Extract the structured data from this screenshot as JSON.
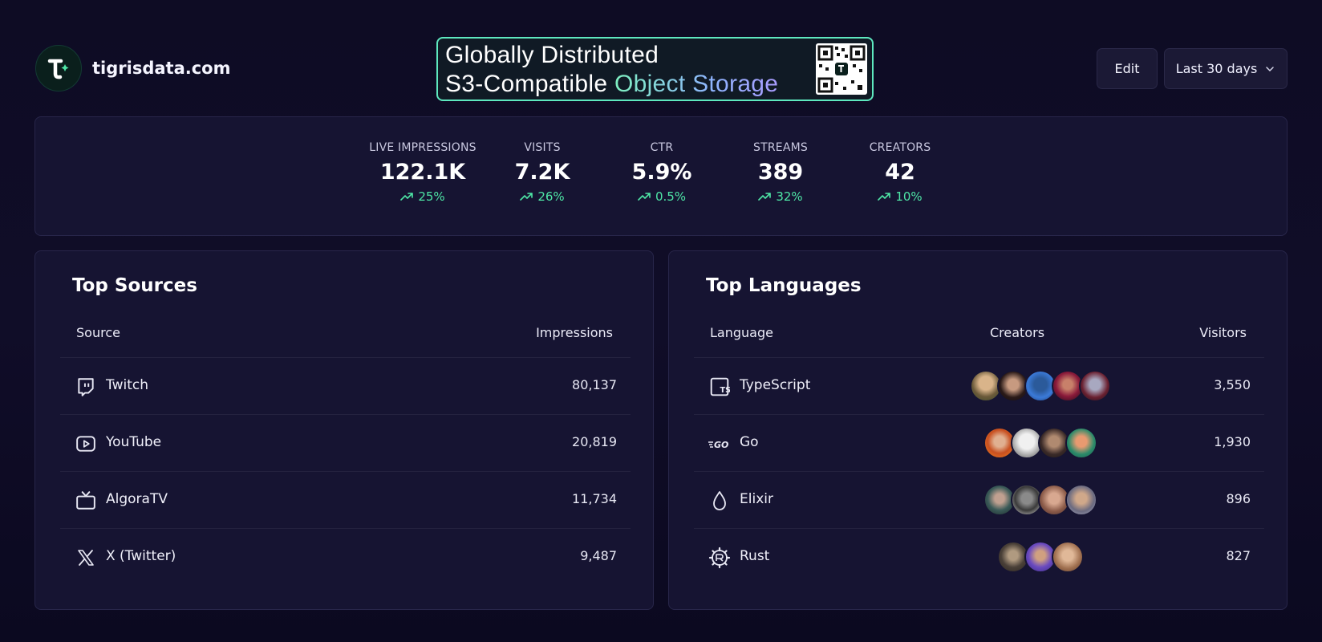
{
  "brand": {
    "name": "tigrisdata.com"
  },
  "banner": {
    "line1": "Globally Distributed",
    "line2_prefix": "S3-Compatible ",
    "line2_accent": "Object Storage"
  },
  "toolbar": {
    "edit_label": "Edit",
    "range_label": "Last 30 days"
  },
  "stats": [
    {
      "label": "LIVE IMPRESSIONS",
      "value": "122.1K",
      "delta": "25%"
    },
    {
      "label": "VISITS",
      "value": "7.2K",
      "delta": "26%"
    },
    {
      "label": "CTR",
      "value": "5.9%",
      "delta": "0.5%"
    },
    {
      "label": "STREAMS",
      "value": "389",
      "delta": "32%"
    },
    {
      "label": "CREATORS",
      "value": "42",
      "delta": "10%"
    }
  ],
  "top_sources": {
    "title": "Top Sources",
    "col_source": "Source",
    "col_impressions": "Impressions",
    "rows": [
      {
        "label": "Twitch",
        "value": "80,137",
        "icon": "twitch-icon"
      },
      {
        "label": "YouTube",
        "value": "20,819",
        "icon": "youtube-icon"
      },
      {
        "label": "AlgoraTV",
        "value": "11,734",
        "icon": "tv-icon"
      },
      {
        "label": "X (Twitter)",
        "value": "9,487",
        "icon": "x-icon"
      }
    ]
  },
  "top_languages": {
    "title": "Top Languages",
    "col_language": "Language",
    "col_creators": "Creators",
    "col_visitors": "Visitors",
    "rows": [
      {
        "label": "TypeScript",
        "value": "3,550",
        "icon": "typescript-icon",
        "creators": 5
      },
      {
        "label": "Go",
        "value": "1,930",
        "icon": "go-icon",
        "creators": 4
      },
      {
        "label": "Elixir",
        "value": "896",
        "icon": "elixir-icon",
        "creators": 4
      },
      {
        "label": "Rust",
        "value": "827",
        "icon": "rust-icon",
        "creators": 3
      }
    ]
  },
  "colors": {
    "accent_green": "#4ee6a6",
    "panel_bg": "#161432",
    "page_bg": "#0e0c24"
  }
}
